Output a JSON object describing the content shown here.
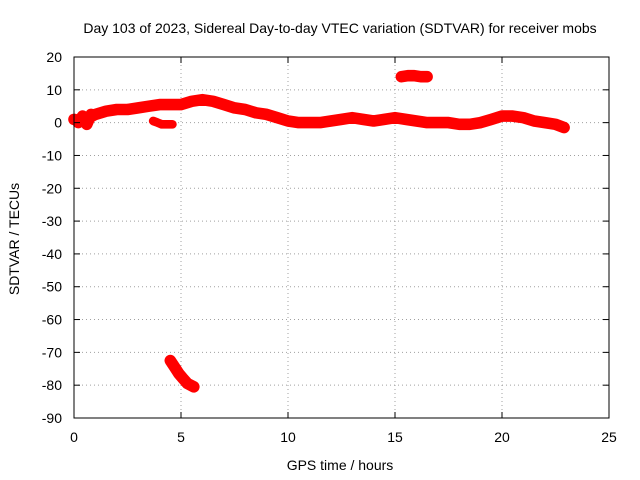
{
  "chart_data": {
    "type": "scatter",
    "title": "Day 103 of 2023, Sidereal Day-to-day VTEC variation (SDTVAR) for receiver mobs",
    "xlabel": "GPS time / hours",
    "ylabel": "SDTVAR / TECUs",
    "xlim": [
      0,
      25
    ],
    "ylim": [
      -90,
      20
    ],
    "xticks": [
      0,
      5,
      10,
      15,
      20,
      25
    ],
    "yticks": [
      -90,
      -80,
      -70,
      -60,
      -50,
      -40,
      -30,
      -20,
      -10,
      0,
      10,
      20
    ],
    "grid": true,
    "marker_color": "#ff0000",
    "series": [
      {
        "name": "SDTVAR",
        "segments": [
          {
            "name": "main-track",
            "x": [
              0.0,
              0.3,
              0.7,
              1.0,
              1.5,
              2.0,
              2.5,
              3.0,
              3.5,
              4.0,
              4.5,
              5.0,
              5.5,
              6.0,
              6.5,
              7.0,
              7.5,
              8.0,
              8.5,
              9.0,
              9.5,
              10.0,
              10.5,
              11.0,
              11.5,
              12.0,
              12.5,
              13.0,
              13.5,
              14.0,
              14.5,
              15.0,
              15.5,
              16.0,
              16.5,
              17.0,
              17.5,
              18.0,
              18.5,
              19.0,
              19.5,
              20.0,
              20.5,
              21.0,
              21.5,
              22.0,
              22.5,
              22.9
            ],
            "y": [
              1.0,
              0.5,
              1.5,
              2.5,
              3.5,
              4.0,
              4.0,
              4.5,
              5.0,
              5.5,
              5.5,
              5.5,
              6.5,
              7.0,
              6.5,
              5.5,
              4.5,
              4.0,
              3.0,
              2.5,
              1.5,
              0.5,
              0.0,
              0.0,
              0.0,
              0.5,
              1.0,
              1.5,
              1.0,
              0.5,
              1.0,
              1.5,
              1.0,
              0.5,
              0.0,
              0.0,
              0.0,
              -0.5,
              -0.5,
              0.0,
              1.0,
              2.0,
              2.0,
              1.5,
              0.5,
              0.0,
              -0.5,
              -1.5
            ],
            "thickness": 1.6
          },
          {
            "name": "early-jitter",
            "x": [
              0.2,
              0.4,
              0.6,
              0.8
            ],
            "y": [
              0.0,
              2.0,
              -0.5,
              2.5
            ],
            "thickness": 1.6
          },
          {
            "name": "dip-segment",
            "x": [
              3.7,
              3.9,
              4.1,
              4.3,
              4.6
            ],
            "y": [
              0.5,
              0.0,
              -0.5,
              -0.5,
              -0.5
            ],
            "thickness": 1.2
          },
          {
            "name": "high-segment",
            "x": [
              15.3,
              15.6,
              15.9,
              16.2,
              16.5
            ],
            "y": [
              14.0,
              14.3,
              14.3,
              14.0,
              14.0
            ],
            "thickness": 1.6
          },
          {
            "name": "low-segment",
            "x": [
              4.5,
              4.7,
              4.9,
              5.1,
              5.3,
              5.6
            ],
            "y": [
              -72.5,
              -74.5,
              -76.5,
              -78.0,
              -79.5,
              -80.5
            ],
            "thickness": 1.6
          }
        ]
      }
    ]
  }
}
